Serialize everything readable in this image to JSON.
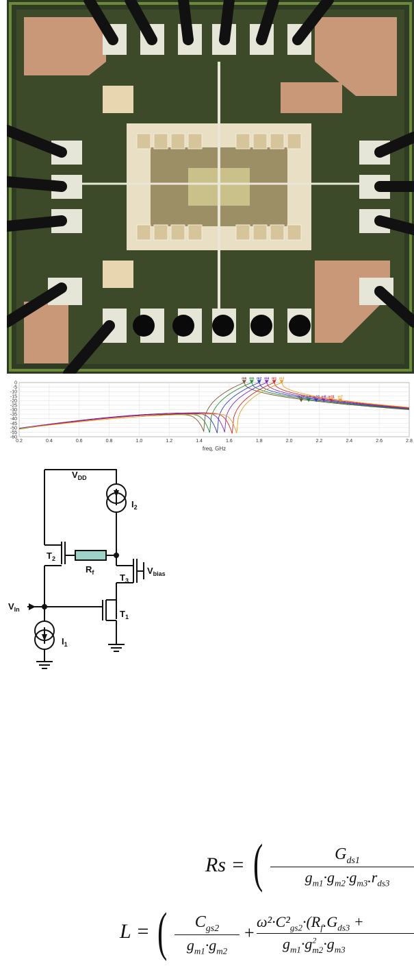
{
  "chart_data": {
    "type": "line",
    "xlabel": "freq, GHz",
    "ylabel": "",
    "xlim": [
      0.2,
      2.8
    ],
    "ylim": [
      -60,
      0
    ],
    "grid": true,
    "x_ticks": [
      "0.2",
      "0.4",
      "0.6",
      "0.8",
      "1.0",
      "1.2",
      "1.4",
      "1.6",
      "1.8",
      "2.0",
      "2.2",
      "2.4",
      "2.6",
      "2.8"
    ],
    "y_ticks": [
      "0",
      "-5",
      "-10",
      "-15",
      "-20",
      "-25",
      "-30",
      "-35",
      "-40",
      "-45",
      "-50",
      "-55",
      "-60"
    ],
    "series": [
      {
        "color": "#7a5230",
        "peak_x": 1.7,
        "peak_y": 0,
        "min_x": 1.43,
        "min_y": -54,
        "hump_x": 1.25,
        "hump_y": -35.5,
        "start_y": -51,
        "end_y": -30,
        "marker_x": 2.08
      },
      {
        "color": "#1f8a3a",
        "peak_x": 1.75,
        "peak_y": 0,
        "min_x": 1.47,
        "min_y": -55.5,
        "hump_x": 1.3,
        "hump_y": -35,
        "start_y": -51.5,
        "end_y": -29.5,
        "marker_x": 2.13
      },
      {
        "color": "#2b3fbf",
        "peak_x": 1.8,
        "peak_y": 0,
        "min_x": 1.52,
        "min_y": -56,
        "hump_x": 1.35,
        "hump_y": -34.5,
        "start_y": -51,
        "end_y": -29,
        "marker_x": 2.18
      },
      {
        "color": "#7a2bbf",
        "peak_x": 1.85,
        "peak_y": 0,
        "min_x": 1.57,
        "min_y": -55,
        "hump_x": 1.4,
        "hump_y": -33.5,
        "start_y": -50.5,
        "end_y": -28.5,
        "marker_x": 2.23
      },
      {
        "color": "#d02828",
        "peak_x": 1.9,
        "peak_y": 0,
        "min_x": 1.62,
        "min_y": -56.5,
        "hump_x": 1.45,
        "hump_y": -34,
        "start_y": -51,
        "end_y": -28,
        "marker_x": 2.28
      },
      {
        "color": "#e6a020",
        "peak_x": 1.95,
        "peak_y": 0,
        "min_x": 1.65,
        "min_y": -56,
        "hump_x": 1.5,
        "hump_y": -35,
        "start_y": -51,
        "end_y": -27.5,
        "marker_x": 2.34
      }
    ],
    "markers_top": {
      "y": 0.5,
      "labels": [
        "m6",
        "m5",
        "m2",
        "m4",
        "m1",
        "m3"
      ]
    },
    "markers_mid": {
      "y": -20,
      "labels": [
        "m12",
        "m9",
        "m10",
        "m8",
        "m11",
        "m7"
      ]
    }
  },
  "circuit": {
    "vdd": "DD",
    "i2": "2",
    "t2": "2",
    "rf": "f",
    "t3": "3",
    "vbias": "bias",
    "vin": "In",
    "t1": "1",
    "i1": "1"
  },
  "equations": {
    "rs": {
      "lhs": "Rs =",
      "num": "G",
      "num_sub": "ds1",
      "den": "g",
      "den_subs": [
        "m1",
        "m2",
        "m3"
      ],
      "den_tail": ".r",
      "den_tail_sub": "ds3"
    },
    "l": {
      "lhs": "L =",
      "f1_num": "C",
      "f1_num_sub": "gs2",
      "f1_den": "g",
      "f1_den_subs": [
        "m1",
        "m2"
      ],
      "plus": "+",
      "f2_num": "ω²·C²",
      "f2_num_sub": "gs2",
      "f2_num_tail": "·(R",
      "f2_num_tail_sub": "f",
      "f2_num_tail2": ".G",
      "f2_num_tail2_sub": "ds3",
      "f2_num_end": "+",
      "f2_den": "g",
      "f2_den_subs": [
        "m1",
        "m2",
        "m3"
      ]
    }
  },
  "colors": {
    "die_bg": "#3d4a2a",
    "pad": "#e6e6d8",
    "bond": "#111111",
    "rf_resistor": "#9fd3c7"
  }
}
